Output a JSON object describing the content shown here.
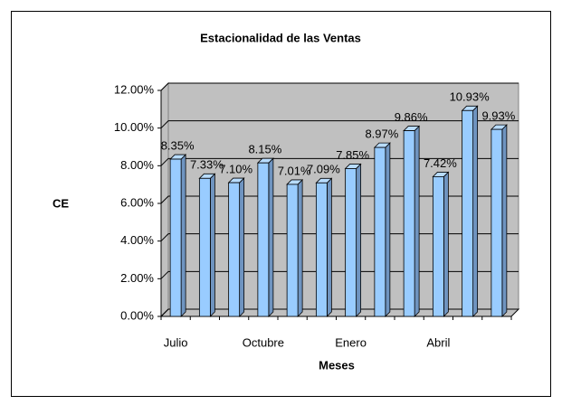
{
  "chart_data": {
    "type": "bar3d",
    "title": "Estacionalidad de las Ventas",
    "x_label": "Meses",
    "y_label": "CE",
    "categories": [
      "Julio",
      null,
      null,
      "Octubre",
      null,
      null,
      "Enero",
      null,
      null,
      "Abril",
      null,
      null
    ],
    "values": [
      8.35,
      7.33,
      7.1,
      8.15,
      7.01,
      7.09,
      7.85,
      8.97,
      9.86,
      7.42,
      10.93,
      9.93
    ],
    "value_labels": [
      "8.35%",
      "7.33%",
      "7.10%",
      "8.15%",
      "7.01%",
      "7.09%",
      "7.85%",
      "8.97%",
      "9.86%",
      "7.42%",
      "10.93%",
      "9.93%"
    ],
    "color": "#99ccff",
    "ylim": [
      0,
      12
    ],
    "yticks": [
      {
        "value": 0,
        "label": "0.00%"
      },
      {
        "value": 2,
        "label": "2.00%"
      },
      {
        "value": 4,
        "label": "4.00%"
      },
      {
        "value": 6,
        "label": "6.00%"
      },
      {
        "value": 8,
        "label": "8.00%"
      },
      {
        "value": 10,
        "label": "10.00%"
      },
      {
        "value": 12,
        "label": "12.00%"
      }
    ],
    "grid": true
  }
}
